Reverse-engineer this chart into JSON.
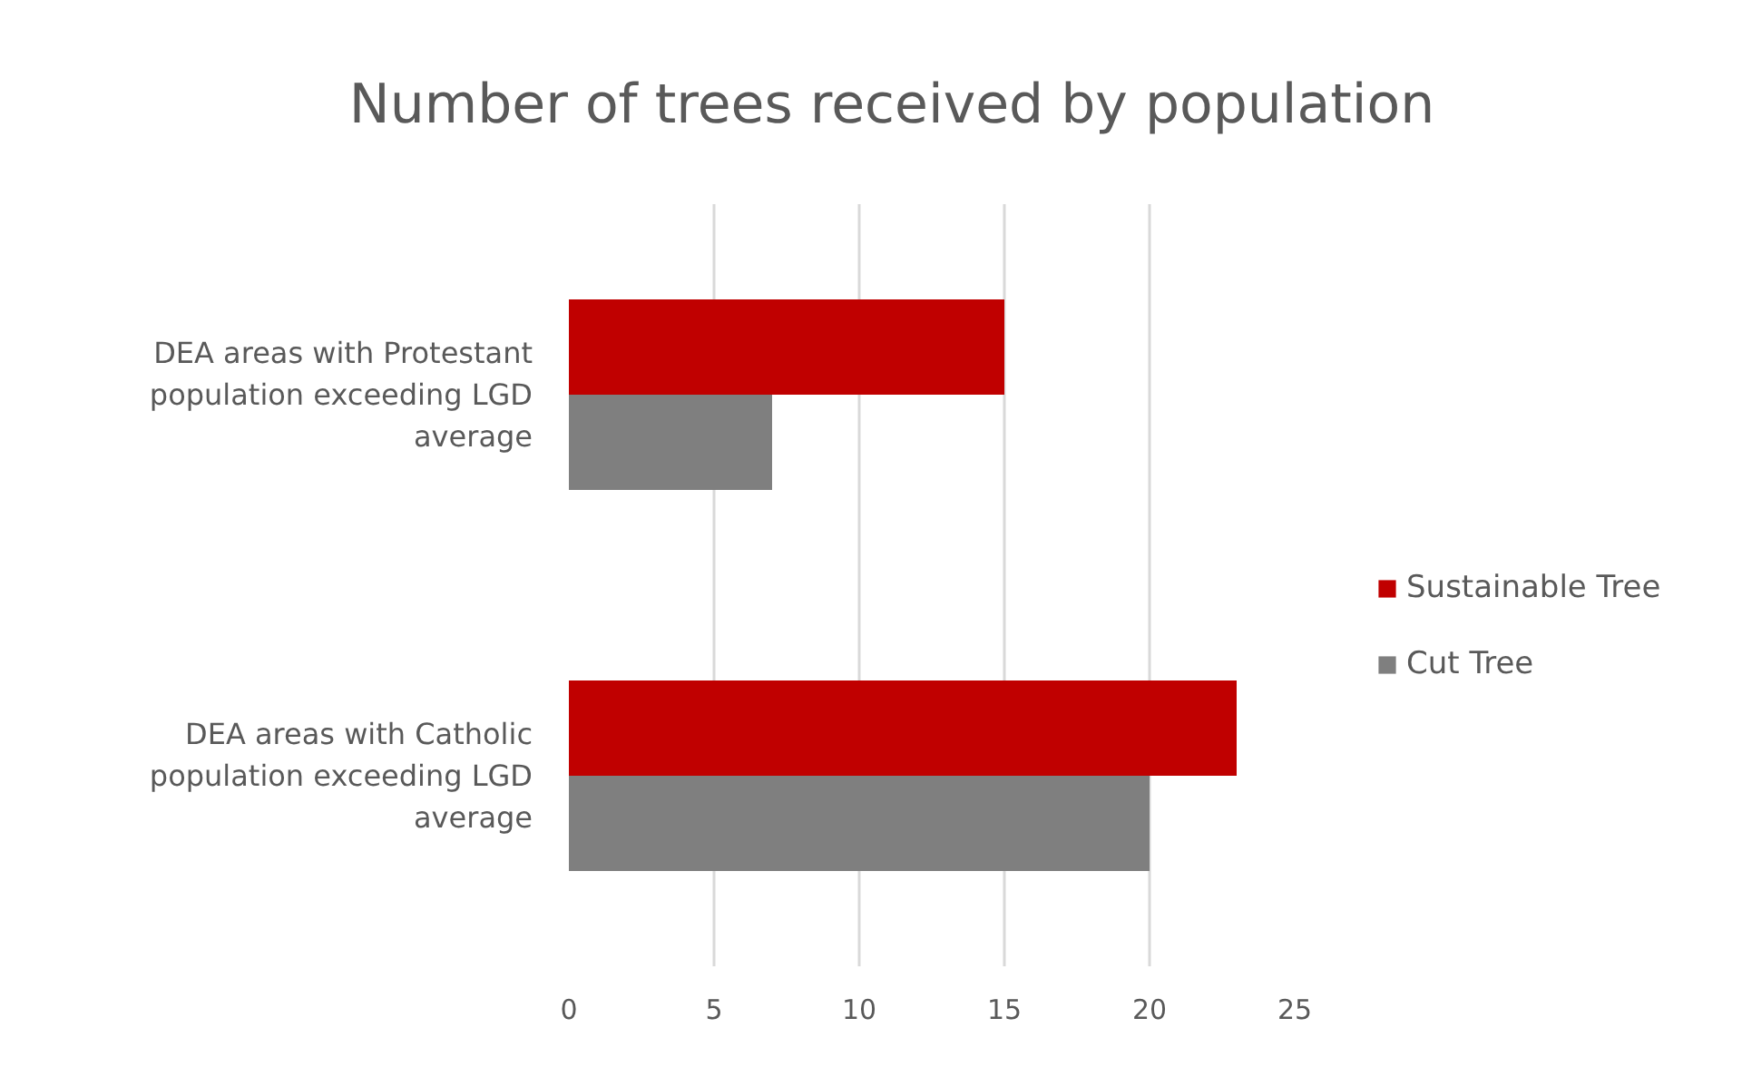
{
  "chart_data": {
    "type": "bar",
    "orientation": "horizontal",
    "title": "Number of trees received by population",
    "categories": [
      "DEA areas with Protestant population exceeding LGD average",
      "DEA areas with Catholic population exceeding LGD average"
    ],
    "series": [
      {
        "name": "Sustainable Tree",
        "color": "#c00000",
        "values": [
          15,
          23
        ]
      },
      {
        "name": "Cut Tree",
        "color": "#7f7f7f",
        "values": [
          7,
          20
        ]
      }
    ],
    "xlim": [
      0,
      25
    ],
    "xticks": [
      0,
      5,
      10,
      15,
      20,
      25
    ],
    "grid": "x",
    "legend": "right"
  }
}
